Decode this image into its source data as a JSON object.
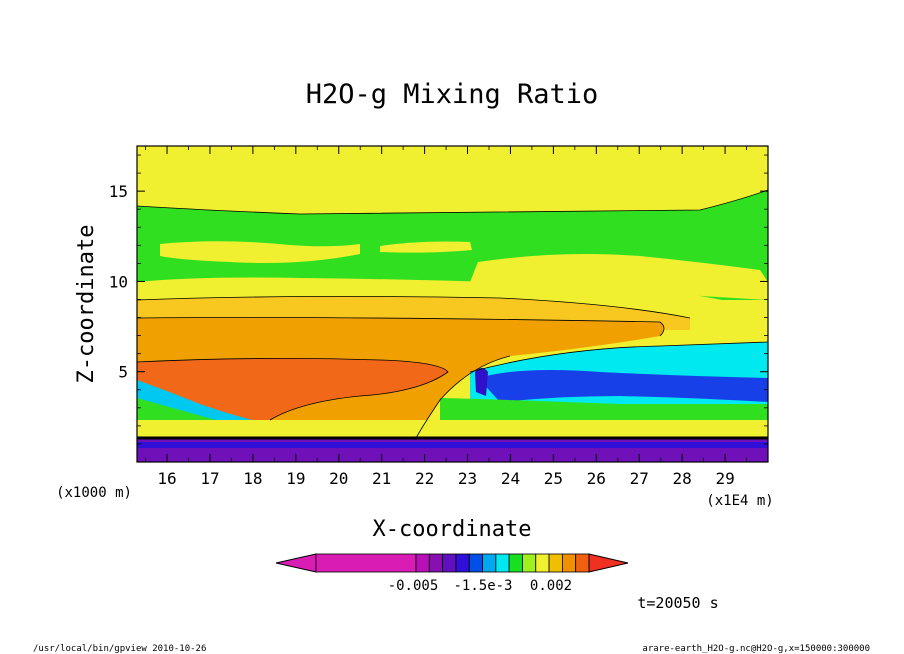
{
  "chart_data": {
    "type": "contour",
    "title": "H2O-g Mixing Ratio",
    "xlabel": "X-coordinate",
    "ylabel": "Z-coordinate",
    "x_unit": "(x1E4 m)",
    "y_unit": "(x1000 m)",
    "xlim": [
      15.3,
      30.0
    ],
    "ylim": [
      0,
      17.5
    ],
    "x_ticks": [
      16,
      17,
      18,
      19,
      20,
      21,
      22,
      23,
      24,
      25,
      26,
      27,
      28,
      29
    ],
    "y_ticks": [
      5,
      10,
      15
    ],
    "colorbar": {
      "colors": [
        "#d81cb4",
        "#b810b8",
        "#8810b0",
        "#6010c0",
        "#3010d8",
        "#0050e8",
        "#00a8f0",
        "#00e8f0",
        "#18e020",
        "#a0f020",
        "#f0f030",
        "#f0c000",
        "#f09000",
        "#f06010",
        "#f03020"
      ],
      "tick_labels": [
        "-0.005",
        "-1.5e-3",
        "0.002"
      ]
    },
    "time_label": "t=20050 s",
    "regions_by_height_km": [
      {
        "z_range": [
          0,
          1.5
        ],
        "fill": "purple"
      },
      {
        "z_range": [
          1.5,
          3.5
        ],
        "fill": "cyan/green/yellow"
      },
      {
        "z_range": [
          3.5,
          6
        ],
        "fill": "orange-red (west), blue (east)"
      },
      {
        "z_range": [
          6,
          10
        ],
        "fill": "orange/yellow"
      },
      {
        "z_range": [
          10,
          14
        ],
        "fill": "green/yellow"
      },
      {
        "z_range": [
          14,
          17.5
        ],
        "fill": "yellow"
      }
    ]
  },
  "footer": {
    "left": "/usr/local/bin/gpview  2010-10-26",
    "right": "arare-earth_H2O-g.nc@H2O-g,x=150000:300000"
  }
}
